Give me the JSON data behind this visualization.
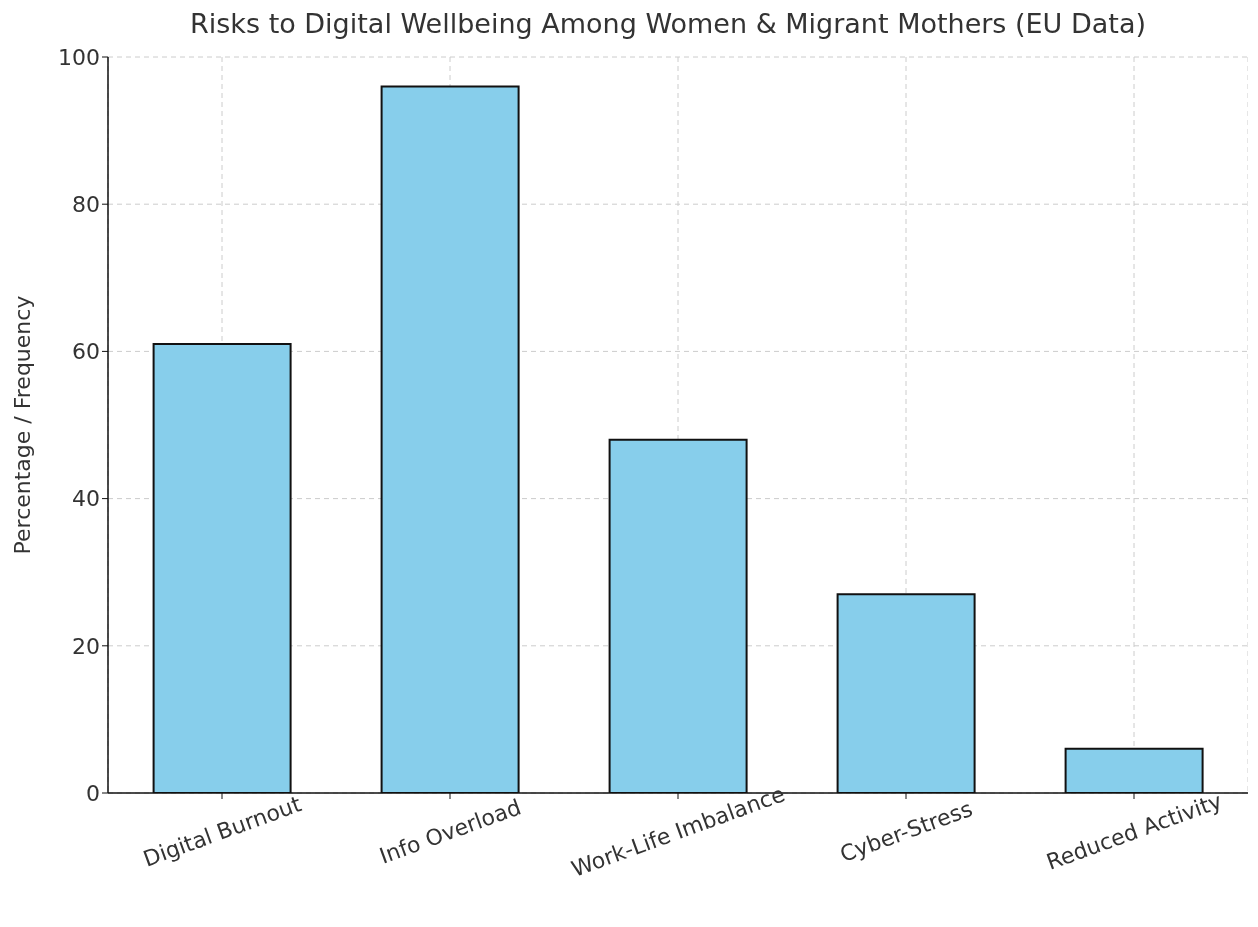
{
  "chart_data": {
    "type": "bar",
    "title": "Risks to Digital Wellbeing Among Women & Migrant Mothers (EU Data)",
    "ylabel": "Percentage / Frequency",
    "categories": [
      "Digital Burnout",
      "Info Overload",
      "Work-Life Imbalance",
      "Cyber-Stress",
      "Reduced Activity"
    ],
    "values": [
      61,
      96,
      48,
      27,
      6
    ],
    "color": "#87ceeb",
    "ylim": [
      0,
      100
    ],
    "yticks": [
      0,
      20,
      40,
      60,
      80,
      100
    ],
    "grid": true
  }
}
